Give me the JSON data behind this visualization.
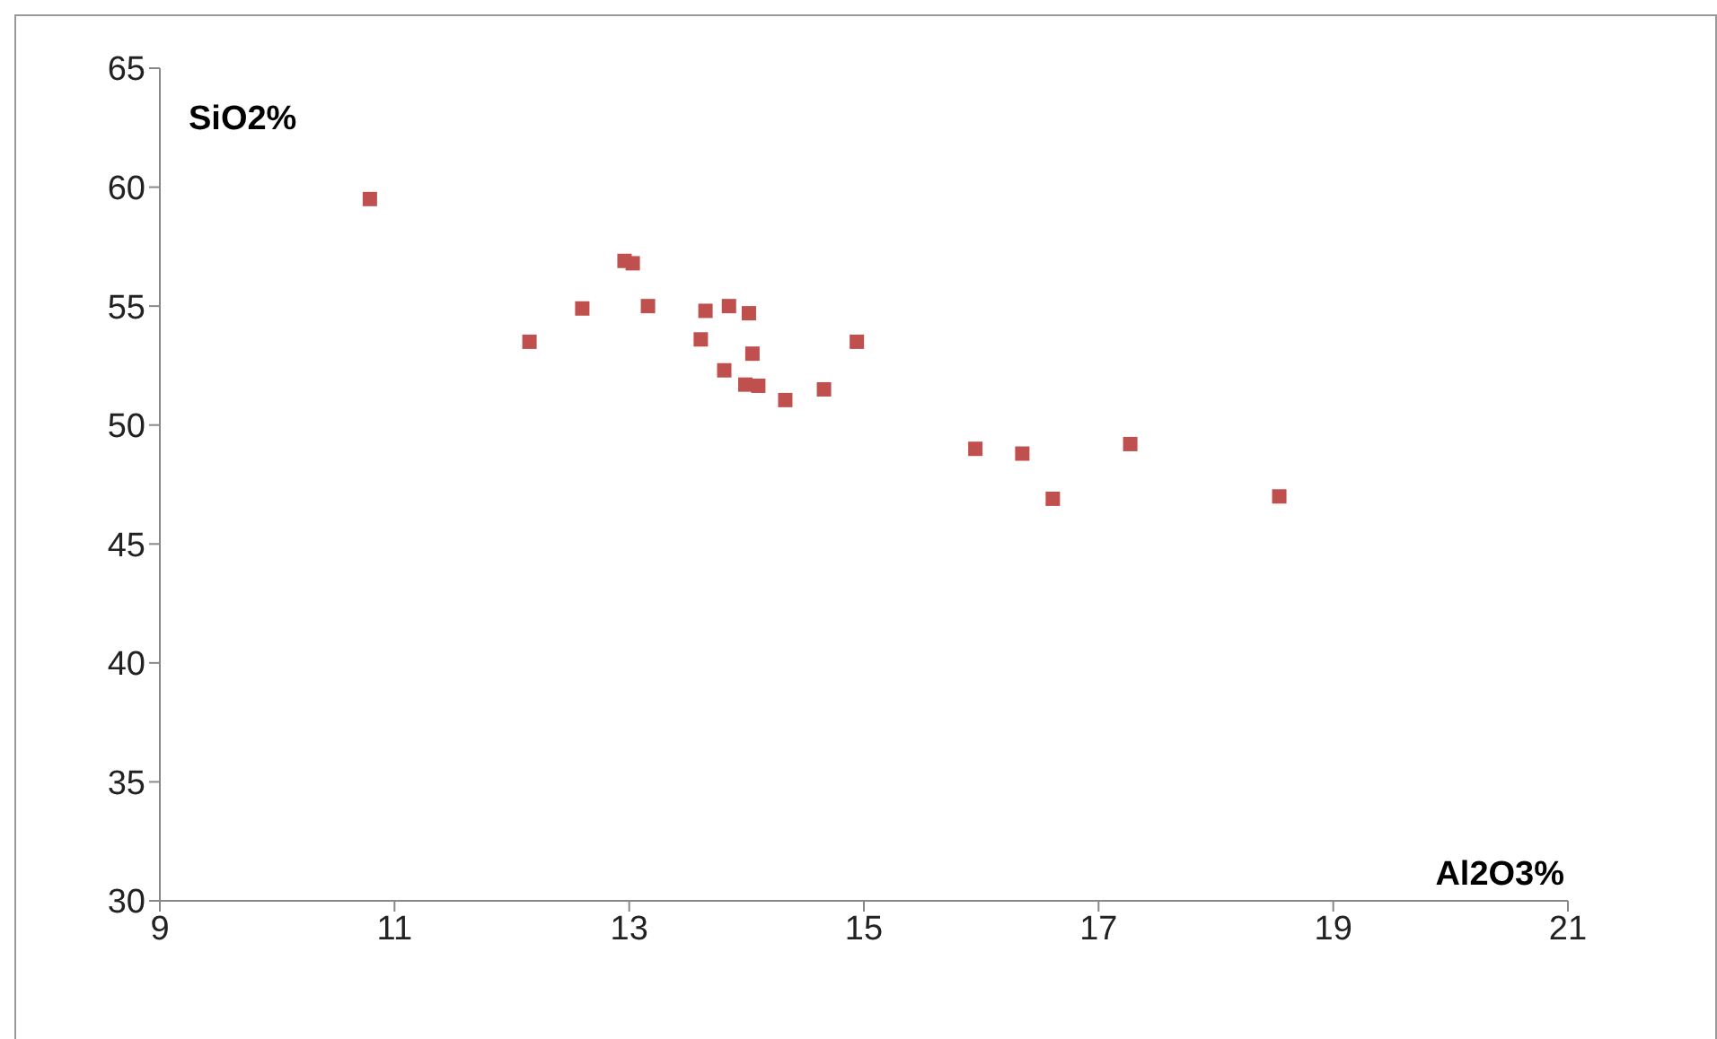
{
  "chart_data": {
    "type": "scatter",
    "xlabel": "Al2O3%",
    "ylabel": "SiO2%",
    "x": [
      10.79,
      12.15,
      12.6,
      12.96,
      13.03,
      13.16,
      13.65,
      13.85,
      14.02,
      13.61,
      14.05,
      13.81,
      13.99,
      14.1,
      14.33,
      14.66,
      14.94,
      15.95,
      16.35,
      16.61,
      17.27,
      18.54
    ],
    "values": [
      59.5,
      53.5,
      54.9,
      56.9,
      56.8,
      55.0,
      54.8,
      55.0,
      54.7,
      53.6,
      53.0,
      52.3,
      51.7,
      51.65,
      51.05,
      51.5,
      53.5,
      49.0,
      48.8,
      46.9,
      49.2,
      47.0
    ],
    "color": "#c0504d",
    "marker": "square",
    "xlim": [
      9,
      21
    ],
    "xticks": [
      9,
      11,
      13,
      15,
      17,
      19,
      21
    ],
    "ylim": [
      30,
      65
    ],
    "yticks": [
      30,
      35,
      40,
      45,
      50,
      55,
      60,
      65
    ],
    "grid": false
  }
}
